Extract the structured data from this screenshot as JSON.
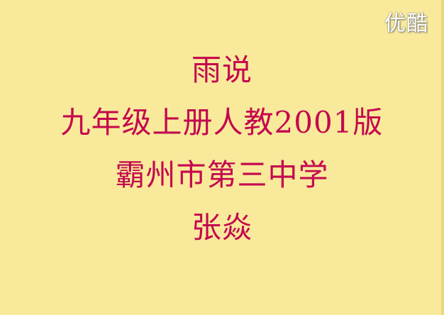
{
  "watermark": {
    "text": "优酷"
  },
  "slide": {
    "lines": [
      "雨说",
      "九年级上册人教2001版",
      "霸州市第三中学",
      "张焱"
    ]
  },
  "colors": {
    "background": "#f8ea9a",
    "text": "#c4084f",
    "watermark": "#ffffff"
  }
}
